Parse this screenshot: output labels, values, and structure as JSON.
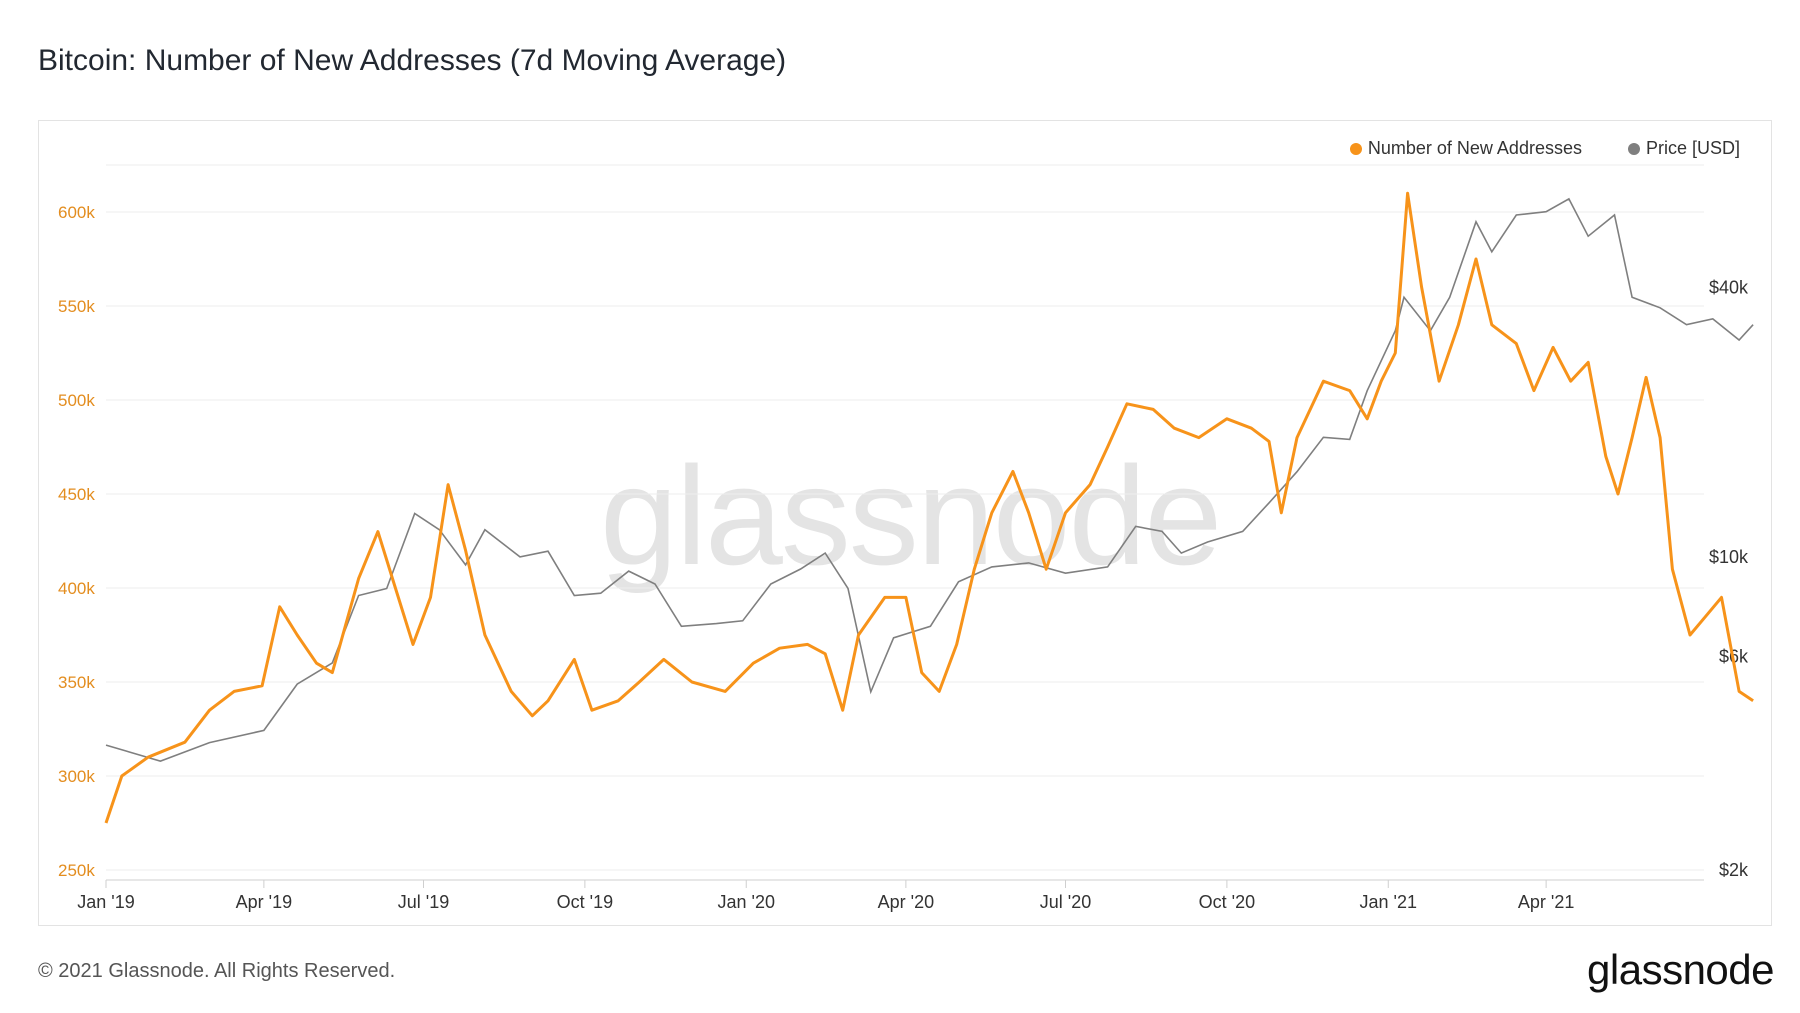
{
  "header": {
    "title": "Bitcoin: Number of New Addresses (7d Moving Average)"
  },
  "footer": {
    "copyright": "© 2021 Glassnode. All Rights Reserved.",
    "brand": "glassnode"
  },
  "watermark": "glassnode",
  "colors": {
    "orange": "#F7931A",
    "gray": "#7f7f7f",
    "grid": "#eeeeee",
    "leftTick": "#E38D1F"
  },
  "chart_data": {
    "type": "line",
    "title": "Bitcoin: Number of New Addresses (7d Moving Average)",
    "legend": {
      "placement": "top-right",
      "entries": [
        "Number of New Addresses",
        "Price [USD]"
      ]
    },
    "x_ticks": [
      "Jan '19",
      "Apr '19",
      "Jul '19",
      "Oct '19",
      "Jan '20",
      "Apr '20",
      "Jul '20",
      "Oct '20",
      "Jan '21",
      "Apr '21"
    ],
    "x_range": [
      "2019-01-01",
      "2021-06-30"
    ],
    "y_left": {
      "ticks": [
        "250k",
        "300k",
        "350k",
        "400k",
        "450k",
        "500k",
        "550k",
        "600k"
      ],
      "range": [
        250000,
        625000
      ]
    },
    "y_right": {
      "scale": "log",
      "ticks": [
        "$2k",
        "$6k",
        "$10k",
        "$40k"
      ],
      "tick_values": [
        2000,
        6000,
        10000,
        40000
      ],
      "range": [
        2000,
        75000
      ]
    },
    "series": [
      {
        "name": "Number of New Addresses",
        "axis": "left",
        "color": "#F7931A",
        "points": [
          [
            "2019-01-01",
            275000
          ],
          [
            "2019-01-10",
            300000
          ],
          [
            "2019-01-25",
            310000
          ],
          [
            "2019-02-15",
            318000
          ],
          [
            "2019-03-01",
            335000
          ],
          [
            "2019-03-15",
            345000
          ],
          [
            "2019-03-31",
            348000
          ],
          [
            "2019-04-10",
            390000
          ],
          [
            "2019-04-20",
            375000
          ],
          [
            "2019-05-01",
            360000
          ],
          [
            "2019-05-10",
            355000
          ],
          [
            "2019-05-25",
            405000
          ],
          [
            "2019-06-05",
            430000
          ],
          [
            "2019-06-15",
            400000
          ],
          [
            "2019-06-25",
            370000
          ],
          [
            "2019-07-05",
            395000
          ],
          [
            "2019-07-15",
            455000
          ],
          [
            "2019-07-25",
            420000
          ],
          [
            "2019-08-05",
            375000
          ],
          [
            "2019-08-20",
            345000
          ],
          [
            "2019-09-01",
            332000
          ],
          [
            "2019-09-10",
            340000
          ],
          [
            "2019-09-25",
            362000
          ],
          [
            "2019-10-05",
            335000
          ],
          [
            "2019-10-20",
            340000
          ],
          [
            "2019-11-01",
            350000
          ],
          [
            "2019-11-15",
            362000
          ],
          [
            "2019-12-01",
            350000
          ],
          [
            "2019-12-20",
            345000
          ],
          [
            "2020-01-05",
            360000
          ],
          [
            "2020-01-20",
            368000
          ],
          [
            "2020-02-05",
            370000
          ],
          [
            "2020-02-15",
            365000
          ],
          [
            "2020-02-25",
            335000
          ],
          [
            "2020-03-05",
            375000
          ],
          [
            "2020-03-20",
            395000
          ],
          [
            "2020-04-01",
            395000
          ],
          [
            "2020-04-10",
            355000
          ],
          [
            "2020-04-20",
            345000
          ],
          [
            "2020-04-30",
            370000
          ],
          [
            "2020-05-10",
            410000
          ],
          [
            "2020-05-20",
            440000
          ],
          [
            "2020-06-01",
            462000
          ],
          [
            "2020-06-10",
            440000
          ],
          [
            "2020-06-20",
            410000
          ],
          [
            "2020-07-01",
            440000
          ],
          [
            "2020-07-15",
            455000
          ],
          [
            "2020-07-25",
            475000
          ],
          [
            "2020-08-05",
            498000
          ],
          [
            "2020-08-20",
            495000
          ],
          [
            "2020-09-01",
            485000
          ],
          [
            "2020-09-15",
            480000
          ],
          [
            "2020-10-01",
            490000
          ],
          [
            "2020-10-15",
            485000
          ],
          [
            "2020-10-25",
            478000
          ],
          [
            "2020-11-01",
            440000
          ],
          [
            "2020-11-10",
            480000
          ],
          [
            "2020-11-25",
            510000
          ],
          [
            "2020-12-10",
            505000
          ],
          [
            "2020-12-20",
            490000
          ],
          [
            "2020-12-28",
            510000
          ],
          [
            "2021-01-05",
            525000
          ],
          [
            "2021-01-12",
            610000
          ],
          [
            "2021-01-20",
            560000
          ],
          [
            "2021-01-30",
            510000
          ],
          [
            "2021-02-10",
            540000
          ],
          [
            "2021-02-20",
            575000
          ],
          [
            "2021-03-01",
            540000
          ],
          [
            "2021-03-15",
            530000
          ],
          [
            "2021-03-25",
            505000
          ],
          [
            "2021-04-05",
            528000
          ],
          [
            "2021-04-15",
            510000
          ],
          [
            "2021-04-25",
            520000
          ],
          [
            "2021-05-05",
            470000
          ],
          [
            "2021-05-12",
            450000
          ],
          [
            "2021-05-20",
            480000
          ],
          [
            "2021-05-28",
            512000
          ],
          [
            "2021-06-05",
            480000
          ],
          [
            "2021-06-12",
            410000
          ],
          [
            "2021-06-22",
            375000
          ],
          [
            "2021-07-01",
            385000
          ],
          [
            "2021-07-10",
            395000
          ],
          [
            "2021-07-15",
            370000
          ],
          [
            "2021-07-20",
            345000
          ],
          [
            "2021-07-28",
            340000
          ]
        ]
      },
      {
        "name": "Price [USD]",
        "axis": "right",
        "color": "#7f7f7f",
        "points": [
          [
            "2019-01-01",
            3800
          ],
          [
            "2019-02-01",
            3500
          ],
          [
            "2019-03-01",
            3850
          ],
          [
            "2019-04-01",
            4100
          ],
          [
            "2019-04-20",
            5200
          ],
          [
            "2019-05-10",
            5800
          ],
          [
            "2019-05-25",
            8200
          ],
          [
            "2019-06-10",
            8500
          ],
          [
            "2019-06-26",
            12500
          ],
          [
            "2019-07-10",
            11500
          ],
          [
            "2019-07-25",
            9600
          ],
          [
            "2019-08-05",
            11500
          ],
          [
            "2019-08-25",
            10000
          ],
          [
            "2019-09-10",
            10300
          ],
          [
            "2019-09-25",
            8200
          ],
          [
            "2019-10-10",
            8300
          ],
          [
            "2019-10-26",
            9300
          ],
          [
            "2019-11-10",
            8700
          ],
          [
            "2019-11-25",
            7000
          ],
          [
            "2019-12-15",
            7100
          ],
          [
            "2019-12-30",
            7200
          ],
          [
            "2020-01-15",
            8700
          ],
          [
            "2020-02-01",
            9400
          ],
          [
            "2020-02-15",
            10200
          ],
          [
            "2020-02-28",
            8500
          ],
          [
            "2020-03-12",
            5000
          ],
          [
            "2020-03-25",
            6600
          ],
          [
            "2020-04-15",
            7000
          ],
          [
            "2020-05-01",
            8800
          ],
          [
            "2020-05-20",
            9500
          ],
          [
            "2020-06-10",
            9700
          ],
          [
            "2020-07-01",
            9200
          ],
          [
            "2020-07-25",
            9500
          ],
          [
            "2020-08-10",
            11700
          ],
          [
            "2020-08-25",
            11400
          ],
          [
            "2020-09-05",
            10200
          ],
          [
            "2020-09-20",
            10800
          ],
          [
            "2020-10-10",
            11400
          ],
          [
            "2020-10-25",
            13200
          ],
          [
            "2020-11-10",
            15500
          ],
          [
            "2020-11-25",
            18500
          ],
          [
            "2020-12-10",
            18300
          ],
          [
            "2020-12-20",
            23500
          ],
          [
            "2021-01-05",
            32000
          ],
          [
            "2021-01-10",
            38000
          ],
          [
            "2021-01-25",
            32000
          ],
          [
            "2021-02-05",
            38000
          ],
          [
            "2021-02-20",
            56000
          ],
          [
            "2021-03-01",
            48000
          ],
          [
            "2021-03-15",
            58000
          ],
          [
            "2021-04-01",
            59000
          ],
          [
            "2021-04-14",
            63000
          ],
          [
            "2021-04-25",
            52000
          ],
          [
            "2021-05-10",
            58000
          ],
          [
            "2021-05-20",
            38000
          ],
          [
            "2021-06-05",
            36000
          ],
          [
            "2021-06-20",
            33000
          ],
          [
            "2021-07-05",
            34000
          ],
          [
            "2021-07-20",
            30500
          ],
          [
            "2021-07-28",
            33000
          ]
        ]
      }
    ]
  }
}
